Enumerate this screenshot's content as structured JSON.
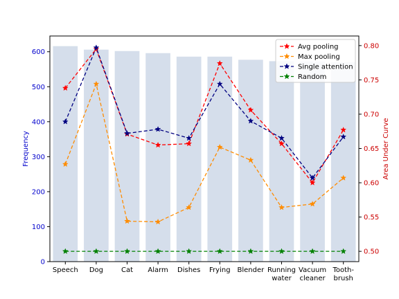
{
  "chart_data": {
    "type": "bar+line",
    "categories": [
      "Speech",
      "Dog",
      "Cat",
      "Alarm",
      "Dishes",
      "Frying",
      "Blender",
      "Running\nwater",
      "Vacuum\ncleaner",
      "Tooth-\nbrush"
    ],
    "bars": {
      "values": [
        616,
        606,
        602,
        596,
        586,
        586,
        577,
        573,
        572,
        570
      ],
      "color": "#d5deeb"
    },
    "y_left": {
      "label": "Frequency",
      "ylim": [
        0,
        645
      ],
      "ticks": [
        0,
        100,
        200,
        300,
        400,
        500,
        600
      ],
      "color": "#0000cc"
    },
    "y_right": {
      "label": "Area Under Curve",
      "ylim": [
        0.485,
        0.814
      ],
      "ticks": [
        0.5,
        0.55,
        0.6,
        0.65,
        0.7,
        0.75,
        0.8
      ],
      "tick_labels": [
        "0.50",
        "0.55",
        "0.60",
        "0.65",
        "0.70",
        "0.75",
        "0.80"
      ],
      "color": "#cc0000"
    },
    "series": [
      {
        "name": "Avg pooling",
        "color": "#ff0000",
        "values": [
          0.738,
          0.795,
          0.671,
          0.655,
          0.657,
          0.774,
          0.706,
          0.657,
          0.6,
          0.677
        ]
      },
      {
        "name": "Max pooling",
        "color": "#ff8c00",
        "values": [
          0.627,
          0.744,
          0.544,
          0.543,
          0.564,
          0.652,
          0.633,
          0.564,
          0.569,
          0.607
        ]
      },
      {
        "name": "Single attention",
        "color": "#000080",
        "values": [
          0.689,
          0.797,
          0.672,
          0.678,
          0.665,
          0.744,
          0.69,
          0.665,
          0.607,
          0.667
        ]
      },
      {
        "name": "Random",
        "color": "#008000",
        "values": [
          0.5,
          0.5,
          0.5,
          0.5,
          0.5,
          0.5,
          0.5,
          0.5,
          0.5,
          0.5
        ]
      }
    ],
    "grid": false,
    "legend_position": "top-right"
  }
}
